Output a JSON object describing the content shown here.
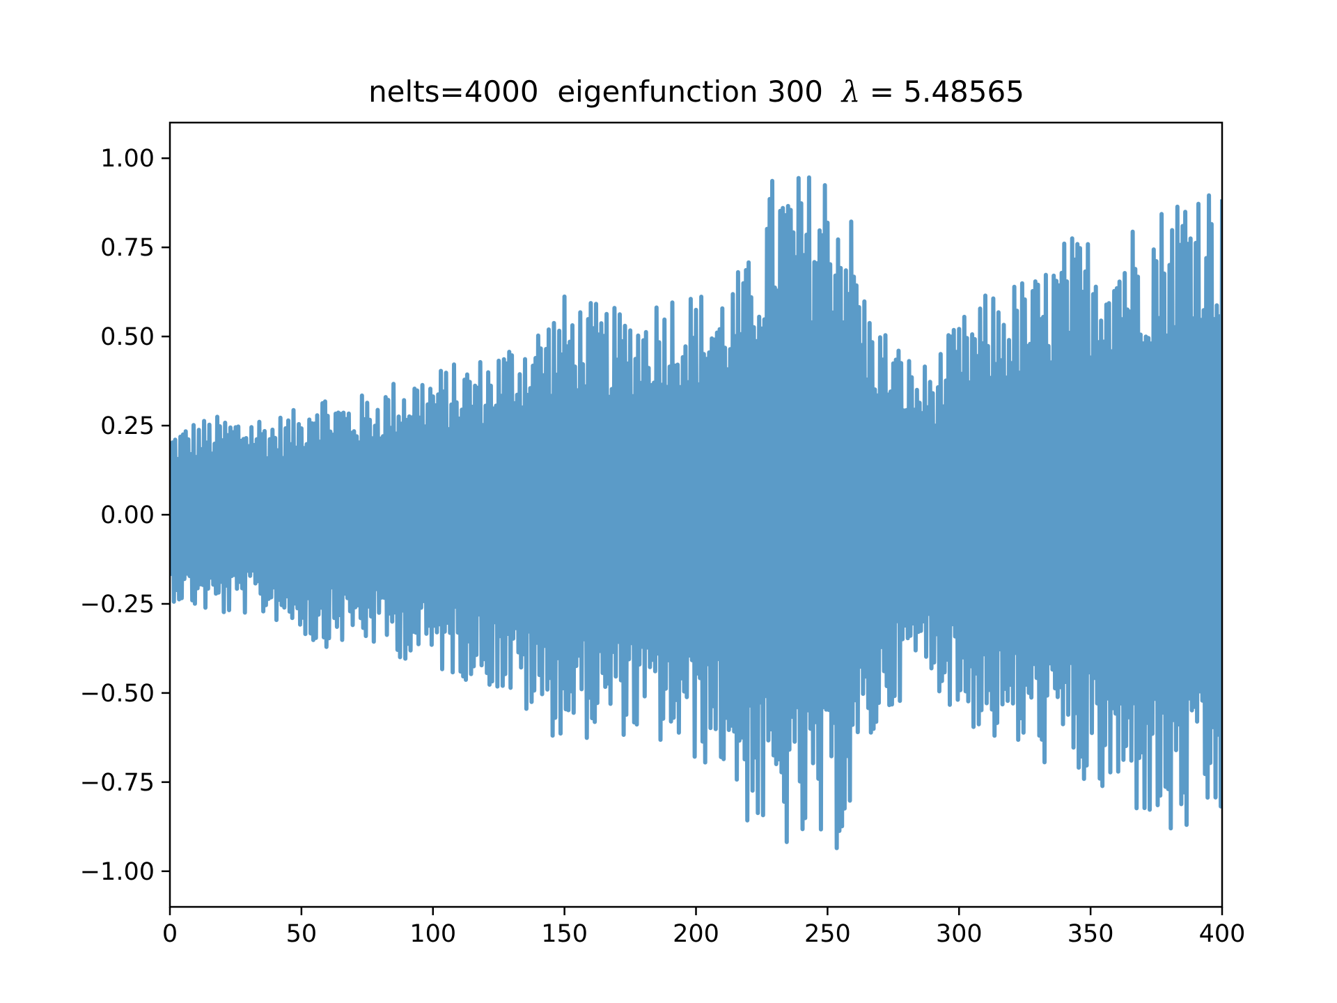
{
  "chart_data": {
    "type": "line",
    "title_prefix": "nelts=4000  eigenfunction 300  ",
    "title_symbol": "λ",
    "title_suffix": " = 5.48565",
    "xlabel": "",
    "ylabel": "",
    "xlim": [
      0,
      400
    ],
    "ylim": [
      -1.1,
      1.1
    ],
    "x_ticks": [
      0,
      50,
      100,
      150,
      200,
      250,
      300,
      350,
      400
    ],
    "x_tick_labels": [
      "0",
      "50",
      "100",
      "150",
      "200",
      "250",
      "300",
      "350",
      "400"
    ],
    "y_ticks": [
      1.0,
      0.75,
      0.5,
      0.25,
      0.0,
      -0.25,
      -0.5,
      -0.75,
      -1.0
    ],
    "y_tick_labels": [
      "1.00",
      "0.75",
      "0.50",
      "0.25",
      "0.00",
      "−0.25",
      "−0.50",
      "−0.75",
      "−1.00"
    ],
    "grid": false,
    "legend": "none",
    "series": [
      {
        "color": "#5b9bc8",
        "oscillation": "rapid, ~one period per unit of x",
        "envelope": {
          "x": [
            0,
            10,
            20,
            30,
            40,
            50,
            55,
            60,
            70,
            80,
            90,
            100,
            110,
            120,
            130,
            140,
            150,
            160,
            170,
            180,
            190,
            200,
            210,
            220,
            230,
            240,
            250,
            258,
            265,
            275,
            285,
            290,
            300,
            310,
            320,
            330,
            340,
            350,
            360,
            370,
            380,
            390,
            400
          ],
          "max": [
            0.24,
            0.27,
            0.28,
            0.29,
            0.28,
            0.3,
            0.39,
            0.34,
            0.33,
            0.36,
            0.4,
            0.41,
            0.43,
            0.45,
            0.5,
            0.55,
            0.62,
            0.6,
            0.58,
            0.6,
            0.65,
            0.63,
            0.65,
            0.72,
            0.98,
            0.96,
            1.0,
            0.9,
            0.6,
            0.5,
            0.42,
            0.44,
            0.55,
            0.62,
            0.66,
            0.68,
            0.78,
            0.8,
            0.82,
            0.85,
            0.9,
            1.0,
            0.92
          ],
          "min": [
            -0.24,
            -0.27,
            -0.29,
            -0.28,
            -0.3,
            -0.33,
            -0.38,
            -0.37,
            -0.36,
            -0.38,
            -0.41,
            -0.44,
            -0.46,
            -0.48,
            -0.53,
            -0.6,
            -0.64,
            -0.63,
            -0.62,
            -0.63,
            -0.67,
            -0.7,
            -0.72,
            -0.88,
            -0.94,
            -0.96,
            -0.98,
            -0.9,
            -0.68,
            -0.55,
            -0.44,
            -0.47,
            -0.58,
            -0.63,
            -0.67,
            -0.7,
            -0.72,
            -0.8,
            -0.84,
            -0.85,
            -0.95,
            -0.9,
            -0.9
          ]
        }
      }
    ]
  }
}
